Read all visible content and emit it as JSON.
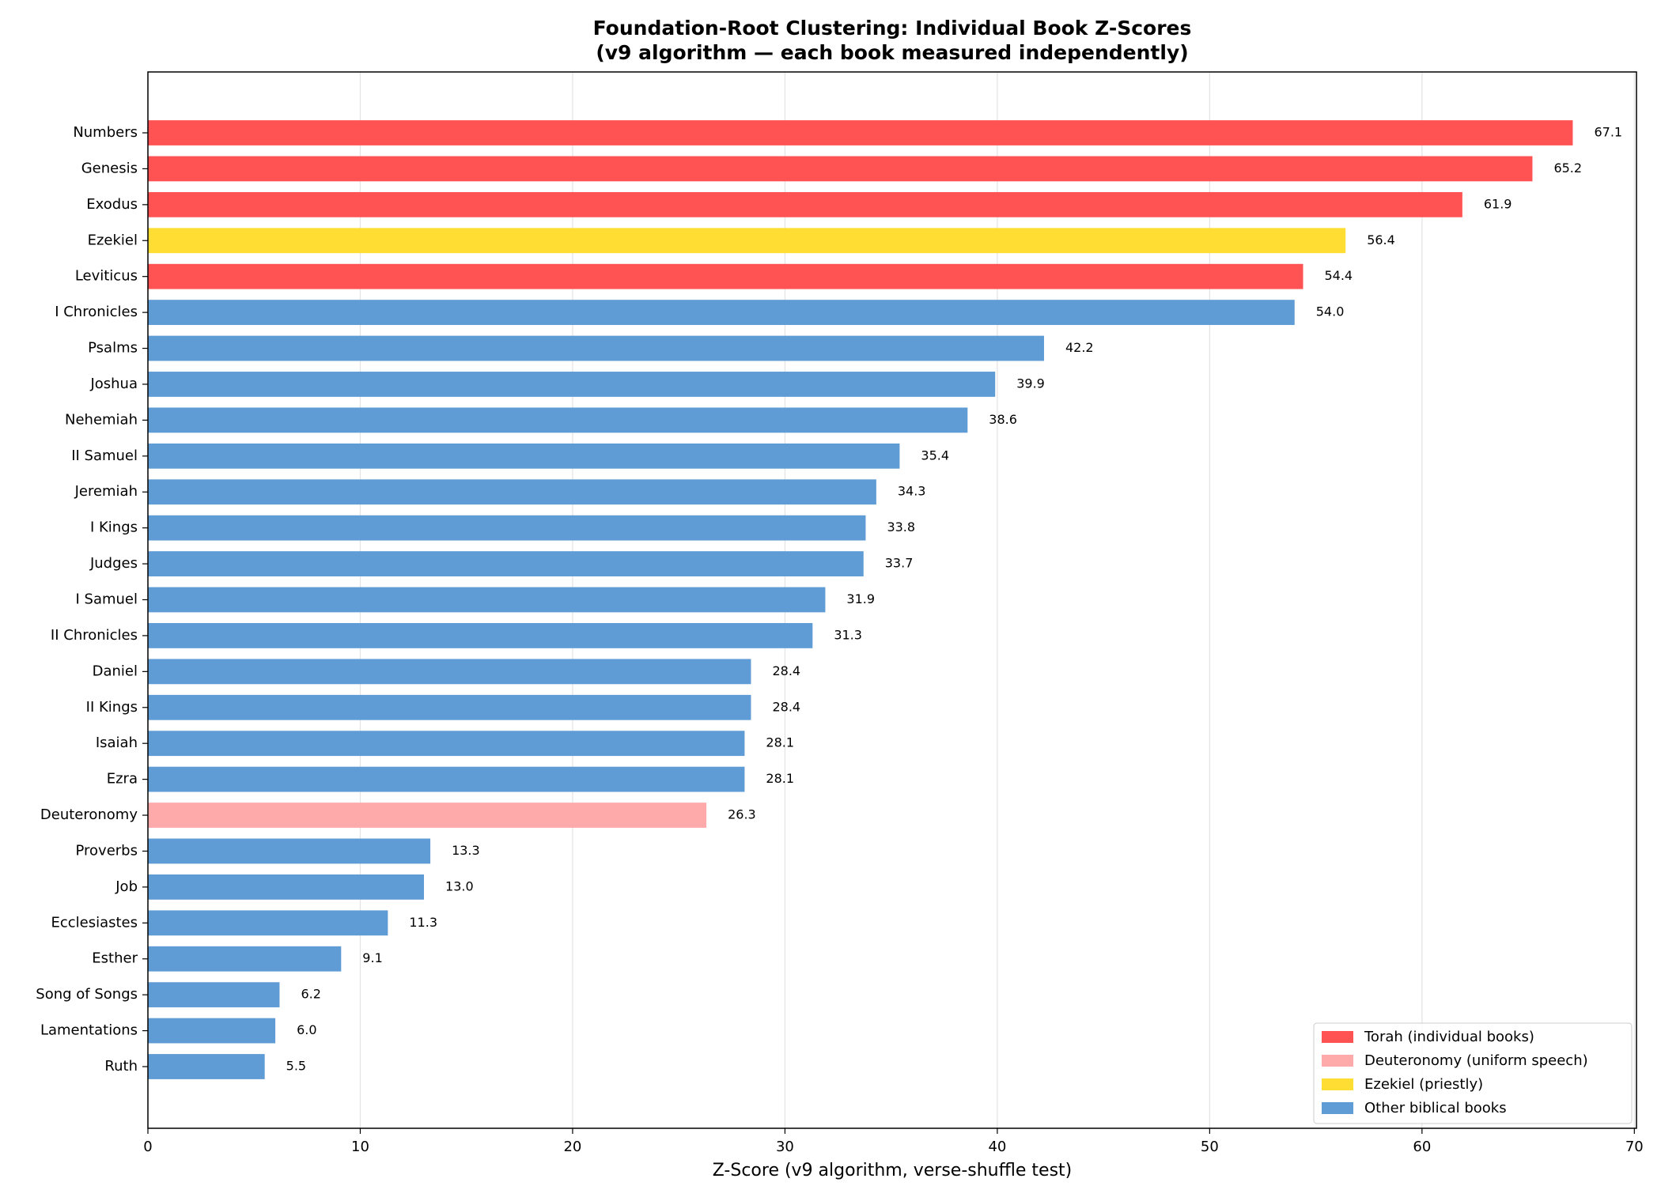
{
  "chart_data": {
    "type": "barh",
    "title": "Foundation-Root Clustering: Individual Book Z-Scores",
    "subtitle": "(v9 algorithm — each book measured independently)",
    "x_label": "Z-Score (v9 algorithm, verse-shuffle test)",
    "categories": [
      "Numbers",
      "Genesis",
      "Exodus",
      "Ezekiel",
      "Leviticus",
      "I Chronicles",
      "Psalms",
      "Joshua",
      "Nehemiah",
      "II Samuel",
      "Jeremiah",
      "I Kings",
      "Judges",
      "I Samuel",
      "II Chronicles",
      "Daniel",
      "II Kings",
      "Isaiah",
      "Ezra",
      "Deuteronomy",
      "Proverbs",
      "Job",
      "Ecclesiastes",
      "Esther",
      "Song of Songs",
      "Lamentations",
      "Ruth"
    ],
    "series": [
      {
        "name": "Torah (individual books)",
        "color": "#ff5252",
        "values": [
          67.1,
          65.2,
          61.9,
          null,
          54.4,
          null,
          null,
          null,
          null,
          null,
          null,
          null,
          null,
          null,
          null,
          null,
          null,
          null,
          null,
          null,
          null,
          null,
          null,
          null,
          null,
          null,
          null
        ],
        "value_labels": [
          "67.1",
          "65.2",
          "61.9",
          null,
          "54.4",
          null,
          null,
          null,
          null,
          null,
          null,
          null,
          null,
          null,
          null,
          null,
          null,
          null,
          null,
          null,
          null,
          null,
          null,
          null,
          null,
          null,
          null
        ]
      },
      {
        "name": "Deuteronomy (uniform speech)",
        "color": "#ffaaaa",
        "values": [
          null,
          null,
          null,
          null,
          null,
          null,
          null,
          null,
          null,
          null,
          null,
          null,
          null,
          null,
          null,
          null,
          null,
          null,
          null,
          26.3,
          null,
          null,
          null,
          null,
          null,
          null,
          null
        ],
        "value_labels": [
          null,
          null,
          null,
          null,
          null,
          null,
          null,
          null,
          null,
          null,
          null,
          null,
          null,
          null,
          null,
          null,
          null,
          null,
          null,
          "26.3",
          null,
          null,
          null,
          null,
          null,
          null,
          null
        ]
      },
      {
        "name": "Ezekiel (priestly)",
        "color": "#ffdd33",
        "values": [
          null,
          null,
          null,
          56.4,
          null,
          null,
          null,
          null,
          null,
          null,
          null,
          null,
          null,
          null,
          null,
          null,
          null,
          null,
          null,
          null,
          null,
          null,
          null,
          null,
          null,
          null,
          null
        ],
        "value_labels": [
          null,
          null,
          null,
          "56.4",
          null,
          null,
          null,
          null,
          null,
          null,
          null,
          null,
          null,
          null,
          null,
          null,
          null,
          null,
          null,
          null,
          null,
          null,
          null,
          null,
          null,
          null,
          null
        ]
      },
      {
        "name": "Other biblical books",
        "color": "#5f9bd4",
        "values": [
          null,
          null,
          null,
          null,
          null,
          54.0,
          42.2,
          39.9,
          38.6,
          35.4,
          34.3,
          33.8,
          33.7,
          31.9,
          31.3,
          28.4,
          28.4,
          28.1,
          28.1,
          null,
          13.3,
          13.0,
          11.3,
          9.1,
          6.2,
          6.0,
          5.5
        ],
        "value_labels": [
          null,
          null,
          null,
          null,
          null,
          "54.0",
          "42.2",
          "39.9",
          "38.6",
          "35.4",
          "34.3",
          "33.8",
          "33.7",
          "31.9",
          "31.3",
          "28.4",
          "28.4",
          "28.1",
          "28.1",
          null,
          "13.3",
          "13.0",
          "11.3",
          "9.1",
          "6.2",
          "6.0",
          "5.5"
        ]
      }
    ],
    "xlim": [
      0,
      70.1
    ],
    "xticks": [
      0,
      10,
      20,
      30,
      40,
      50,
      60,
      70
    ],
    "grid": true,
    "legend": "lower right"
  }
}
